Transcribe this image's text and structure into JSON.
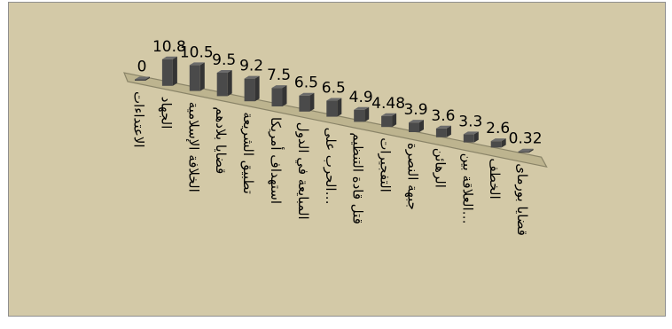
{
  "chart_data": {
    "type": "bar",
    "title": "",
    "xlabel": "",
    "ylabel": "",
    "ylim": [
      0,
      10.8
    ],
    "grid": false,
    "legend": "none",
    "bar_color": "#4a4a4a",
    "floor_color": "#bdb48f",
    "categories": [
      "الاعتداءات",
      "الجهاد",
      "الخلافة الإسلامية",
      "قضايا بلادهم",
      "تطبيق الشريعة",
      "استهداف أمريكا",
      "المبايعة في الدول",
      "الحرب على…",
      "قتل قادة التنظيم",
      "التفجيرات",
      "جبهة النصرة",
      "الرهائن",
      "العلاقة بين…",
      "الخطف",
      "قضايا بورماى"
    ],
    "values": [
      0,
      10.8,
      10.5,
      9.5,
      9.2,
      7.5,
      6.5,
      6.5,
      4.9,
      4.48,
      3.9,
      3.6,
      3.3,
      2.6,
      0.32
    ]
  }
}
